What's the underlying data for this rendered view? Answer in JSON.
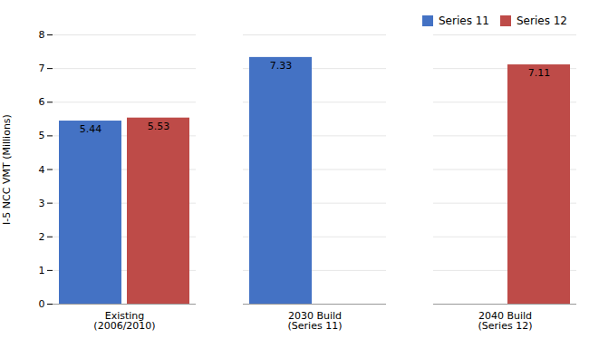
{
  "chart_data": {
    "type": "bar",
    "categories": [
      "Existing\n(2006/2010)",
      "2030 Build\n(Series 11)",
      "2040 Build\n(Series 12)"
    ],
    "series": [
      {
        "name": "Series 11",
        "color": "#4472C4",
        "values": [
          5.44,
          7.33,
          null
        ]
      },
      {
        "name": "Series 12",
        "color": "#BE4B48",
        "values": [
          5.53,
          null,
          7.11
        ]
      }
    ],
    "ylabel": "I-5 NCC VMT (Millions)",
    "ylim": [
      0,
      8
    ],
    "yticks": [
      0,
      1,
      2,
      3,
      4,
      5,
      6,
      7,
      8
    ],
    "grid": true,
    "legend": "upper right",
    "data_labels": true
  }
}
